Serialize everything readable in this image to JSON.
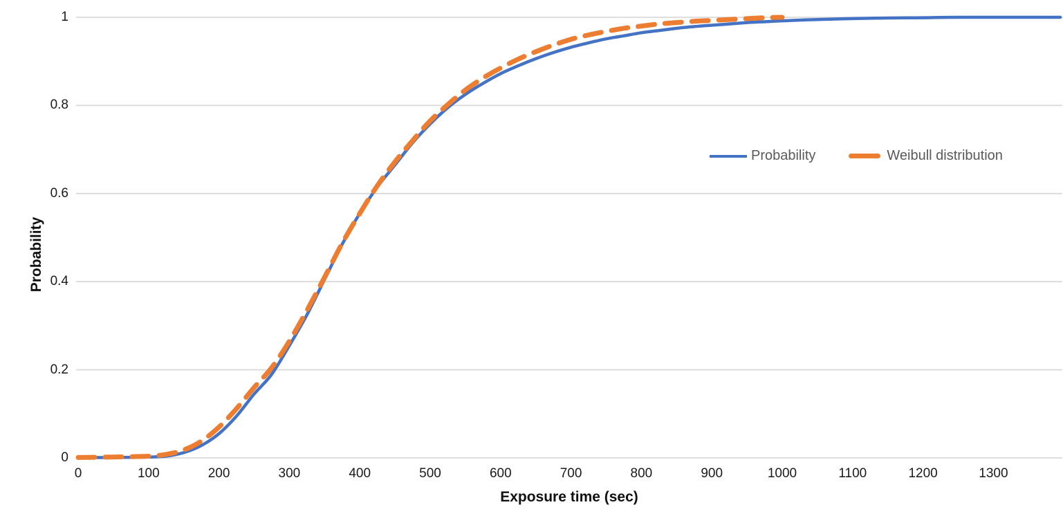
{
  "colors": {
    "background": "#FFFFFF",
    "gridline": "#D9D9D9",
    "axis_text": "#1A1A1A",
    "axis_title_text": "#111111",
    "legend_text": "#595959",
    "probability_line": "#4472C4",
    "weibull_line": "#ED7D31"
  },
  "chart_data": {
    "type": "line",
    "title": "",
    "xlabel": "Exposure time (sec)",
    "ylabel": "Probability",
    "xlim": [
      0,
      1395
    ],
    "ylim": [
      0,
      1
    ],
    "grid": "horizontal",
    "legend_position": "center-right",
    "x_ticks": [
      {
        "value": 0,
        "label": "0"
      },
      {
        "value": 100,
        "label": "100"
      },
      {
        "value": 200,
        "label": "200"
      },
      {
        "value": 300,
        "label": "300"
      },
      {
        "value": 400,
        "label": "400"
      },
      {
        "value": 500,
        "label": "500"
      },
      {
        "value": 600,
        "label": "600"
      },
      {
        "value": 700,
        "label": "700"
      },
      {
        "value": 800,
        "label": "800"
      },
      {
        "value": 900,
        "label": "900"
      },
      {
        "value": 1000,
        "label": "1000"
      },
      {
        "value": 1100,
        "label": "1100"
      },
      {
        "value": 1200,
        "label": "1200"
      },
      {
        "value": 1300,
        "label": "1300"
      }
    ],
    "y_ticks": [
      {
        "value": 0,
        "label": "0"
      },
      {
        "value": 0.2,
        "label": "0.2"
      },
      {
        "value": 0.4,
        "label": "0.4"
      },
      {
        "value": 0.6,
        "label": "0.6"
      },
      {
        "value": 0.8,
        "label": "0.8"
      },
      {
        "value": 1,
        "label": "1"
      }
    ],
    "series": [
      {
        "name": "Probability",
        "color": "#4472C4",
        "style": "solid",
        "stroke_width": 4.5,
        "points": [
          [
            0,
            0.001
          ],
          [
            50,
            0.001
          ],
          [
            100,
            0.002
          ],
          [
            125,
            0.004
          ],
          [
            150,
            0.012
          ],
          [
            175,
            0.028
          ],
          [
            200,
            0.055
          ],
          [
            225,
            0.095
          ],
          [
            250,
            0.145
          ],
          [
            275,
            0.19
          ],
          [
            300,
            0.255
          ],
          [
            325,
            0.325
          ],
          [
            350,
            0.405
          ],
          [
            375,
            0.485
          ],
          [
            400,
            0.555
          ],
          [
            425,
            0.615
          ],
          [
            450,
            0.665
          ],
          [
            475,
            0.715
          ],
          [
            500,
            0.758
          ],
          [
            525,
            0.795
          ],
          [
            550,
            0.825
          ],
          [
            575,
            0.85
          ],
          [
            600,
            0.872
          ],
          [
            625,
            0.89
          ],
          [
            650,
            0.906
          ],
          [
            675,
            0.92
          ],
          [
            700,
            0.932
          ],
          [
            725,
            0.942
          ],
          [
            750,
            0.951
          ],
          [
            775,
            0.958
          ],
          [
            800,
            0.965
          ],
          [
            825,
            0.97
          ],
          [
            850,
            0.975
          ],
          [
            875,
            0.979
          ],
          [
            900,
            0.982
          ],
          [
            925,
            0.985
          ],
          [
            950,
            0.988
          ],
          [
            975,
            0.99
          ],
          [
            1000,
            0.992
          ],
          [
            1050,
            0.995
          ],
          [
            1100,
            0.997
          ],
          [
            1150,
            0.9985
          ],
          [
            1200,
            0.999
          ],
          [
            1250,
            1.0
          ],
          [
            1395,
            1.0
          ]
        ]
      },
      {
        "name": "Weibull distribution",
        "color": "#ED7D31",
        "style": "dashed",
        "stroke_width": 7,
        "dash_pattern": "24 15",
        "points": [
          [
            0,
            0.001
          ],
          [
            50,
            0.002
          ],
          [
            100,
            0.004
          ],
          [
            125,
            0.008
          ],
          [
            150,
            0.018
          ],
          [
            175,
            0.038
          ],
          [
            200,
            0.07
          ],
          [
            225,
            0.112
          ],
          [
            250,
            0.16
          ],
          [
            275,
            0.205
          ],
          [
            300,
            0.265
          ],
          [
            325,
            0.335
          ],
          [
            350,
            0.41
          ],
          [
            375,
            0.487
          ],
          [
            400,
            0.555
          ],
          [
            425,
            0.618
          ],
          [
            450,
            0.672
          ],
          [
            475,
            0.72
          ],
          [
            500,
            0.765
          ],
          [
            525,
            0.802
          ],
          [
            550,
            0.835
          ],
          [
            575,
            0.862
          ],
          [
            600,
            0.885
          ],
          [
            625,
            0.905
          ],
          [
            650,
            0.922
          ],
          [
            675,
            0.937
          ],
          [
            700,
            0.95
          ],
          [
            725,
            0.96
          ],
          [
            750,
            0.968
          ],
          [
            775,
            0.975
          ],
          [
            800,
            0.98
          ],
          [
            825,
            0.985
          ],
          [
            850,
            0.988
          ],
          [
            875,
            0.991
          ],
          [
            900,
            0.993
          ],
          [
            925,
            0.995
          ],
          [
            950,
            0.997
          ],
          [
            975,
            0.999
          ],
          [
            1000,
            1.0
          ]
        ]
      }
    ]
  }
}
